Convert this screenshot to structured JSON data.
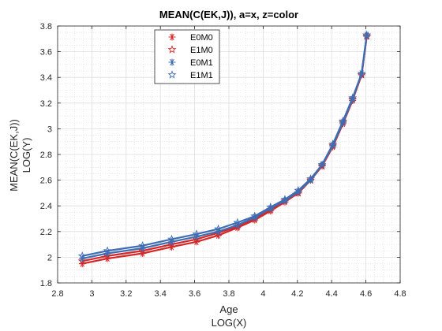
{
  "chart_data": {
    "type": "line",
    "title": "MEAN(C(EK,J)), a=x, z=color",
    "xlabel": "Age",
    "xlabel2": "LOG(X)",
    "ylabel": "MEAN(C(EK,J))",
    "ylabel2": "LOG(Y)",
    "xlim": [
      2.8,
      4.8
    ],
    "ylim": [
      1.8,
      3.8
    ],
    "xticks": [
      2.8,
      3,
      3.2,
      3.4,
      3.6,
      3.8,
      4,
      4.2,
      4.4,
      4.6,
      4.8
    ],
    "yticks": [
      1.8,
      2,
      2.2,
      2.4,
      2.6,
      2.8,
      3,
      3.2,
      3.4,
      3.6,
      3.8
    ],
    "grid": true,
    "minor_grid": true,
    "legend_position": "top-center",
    "x": [
      2.944,
      3.091,
      3.296,
      3.466,
      3.611,
      3.738,
      3.85,
      3.951,
      4.043,
      4.127,
      4.205,
      4.277,
      4.344,
      4.407,
      4.466,
      4.522,
      4.575,
      4.605
    ],
    "series": [
      {
        "name": "E0M0",
        "marker": "asterisk",
        "color": "#d62728",
        "values": [
          1.95,
          1.99,
          2.03,
          2.08,
          2.12,
          2.17,
          2.23,
          2.29,
          2.36,
          2.43,
          2.5,
          2.6,
          2.71,
          2.86,
          3.04,
          3.22,
          3.42,
          3.72
        ]
      },
      {
        "name": "E1M0",
        "marker": "star",
        "color": "#d62728",
        "values": [
          1.97,
          2.01,
          2.05,
          2.1,
          2.14,
          2.19,
          2.24,
          2.3,
          2.37,
          2.44,
          2.5,
          2.6,
          2.71,
          2.87,
          3.05,
          3.23,
          3.42,
          3.72
        ]
      },
      {
        "name": "E0M1",
        "marker": "asterisk",
        "color": "#3e6db3",
        "values": [
          1.99,
          2.03,
          2.07,
          2.12,
          2.16,
          2.2,
          2.25,
          2.31,
          2.38,
          2.44,
          2.51,
          2.6,
          2.72,
          2.87,
          3.05,
          3.23,
          3.43,
          3.73
        ]
      },
      {
        "name": "E1M1",
        "marker": "star",
        "color": "#3e6db3",
        "values": [
          2.01,
          2.05,
          2.09,
          2.14,
          2.18,
          2.22,
          2.27,
          2.32,
          2.39,
          2.45,
          2.52,
          2.61,
          2.72,
          2.88,
          3.06,
          3.24,
          3.43,
          3.73
        ]
      }
    ]
  }
}
